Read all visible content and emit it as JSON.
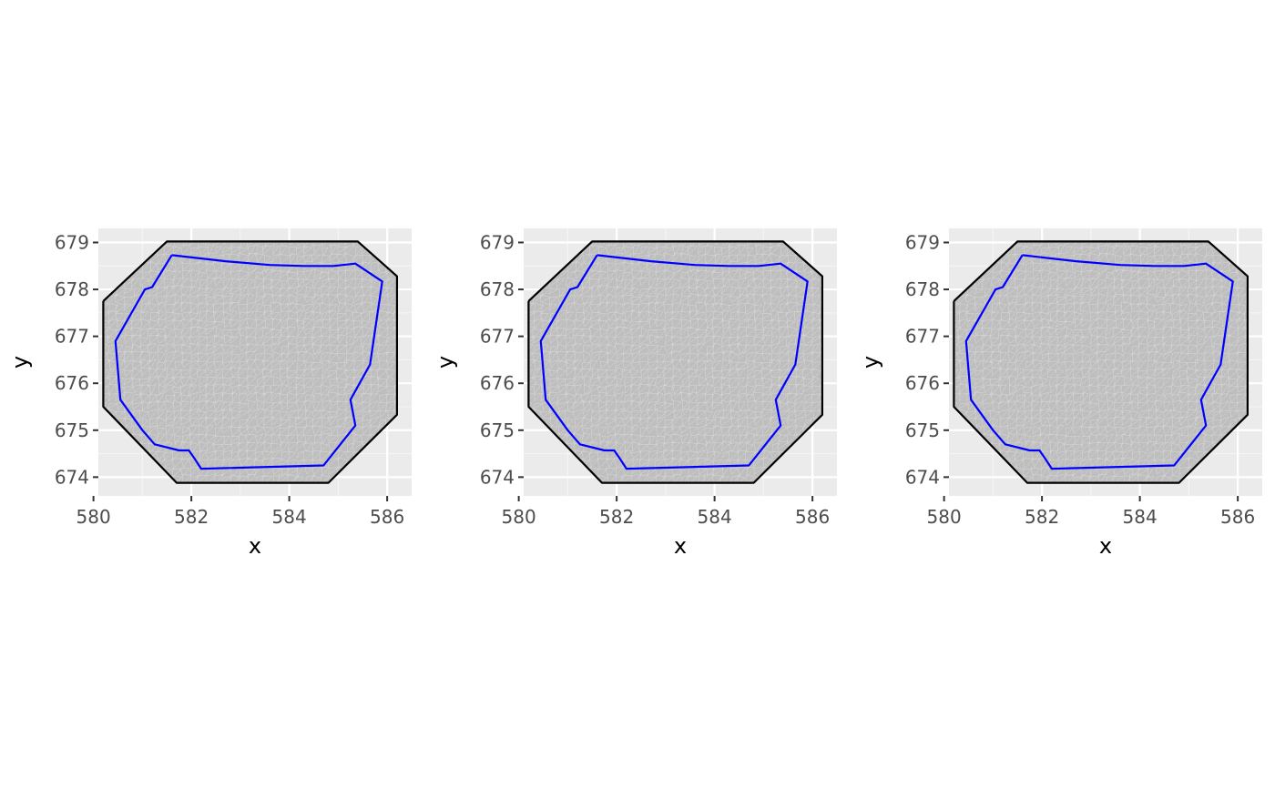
{
  "colors": {
    "panel_background": "#ebebeb",
    "grid_major": "#ffffff",
    "grid_minor": "#f5f5f5",
    "mesh_fill": "#bebebe",
    "mesh_line": "#d9d9d9",
    "outer_boundary": "#000000",
    "inner_boundary": "#0000ff",
    "tick_text": "#4d4d4d",
    "axis_title": "#000000"
  },
  "chart_data": [
    {
      "type": "polygon-mesh",
      "xlabel": "x",
      "ylabel": "y",
      "xlim": [
        580.1,
        586.5
      ],
      "ylim": [
        673.6,
        679.3
      ],
      "xticks": [
        580,
        582,
        584,
        586
      ],
      "yticks": [
        674,
        675,
        676,
        677,
        678,
        679
      ],
      "grid": true,
      "series": [
        {
          "kind": "mesh",
          "x": [
            580.2,
            580.2,
            581.5,
            585.4,
            586.2,
            586.2,
            584.8,
            581.7,
            580.2
          ],
          "y": [
            677.75,
            675.5,
            679.02,
            679.02,
            678.28,
            675.33,
            673.88,
            673.88,
            675.5
          ]
        },
        {
          "kind": "outer-boundary",
          "x": [
            580.2,
            581.5,
            585.4,
            586.2,
            586.2,
            584.8,
            581.7,
            580.2,
            580.2
          ],
          "y": [
            677.75,
            679.02,
            679.02,
            678.28,
            675.33,
            673.88,
            673.88,
            675.5,
            677.75
          ]
        },
        {
          "kind": "inner-boundary",
          "x": [
            581.6,
            582.7,
            583.6,
            584.3,
            584.9,
            585.35,
            585.9,
            585.65,
            585.25,
            585.35,
            584.7,
            582.2,
            582.05,
            581.95,
            581.75,
            581.25,
            581.0,
            580.55,
            580.45,
            581.05,
            581.2,
            581.6
          ],
          "y": [
            678.73,
            678.6,
            678.52,
            678.5,
            678.5,
            678.55,
            678.17,
            676.4,
            675.65,
            675.1,
            674.25,
            674.18,
            674.42,
            674.57,
            674.57,
            674.7,
            675.0,
            675.65,
            676.9,
            678.0,
            678.05,
            678.73
          ]
        }
      ]
    },
    {
      "type": "polygon-mesh",
      "xlabel": "x",
      "ylabel": "y",
      "xlim": [
        580.1,
        586.5
      ],
      "ylim": [
        673.6,
        679.3
      ],
      "xticks": [
        580,
        582,
        584,
        586
      ],
      "yticks": [
        674,
        675,
        676,
        677,
        678,
        679
      ],
      "grid": true,
      "series": [
        {
          "kind": "mesh",
          "x": [
            580.2,
            580.2,
            581.5,
            585.4,
            586.2,
            586.2,
            584.8,
            581.7,
            580.2
          ],
          "y": [
            677.75,
            675.5,
            679.02,
            679.02,
            678.28,
            675.33,
            673.88,
            673.88,
            675.5
          ]
        },
        {
          "kind": "outer-boundary",
          "x": [
            580.2,
            581.5,
            585.4,
            586.2,
            586.2,
            584.8,
            581.7,
            580.2,
            580.2
          ],
          "y": [
            677.75,
            679.02,
            679.02,
            678.28,
            675.33,
            673.88,
            673.88,
            675.5,
            677.75
          ]
        },
        {
          "kind": "inner-boundary",
          "x": [
            581.6,
            582.7,
            583.6,
            584.3,
            584.9,
            585.35,
            585.9,
            585.65,
            585.25,
            585.35,
            584.7,
            582.2,
            582.05,
            581.95,
            581.75,
            581.25,
            581.0,
            580.55,
            580.45,
            581.05,
            581.2,
            581.6
          ],
          "y": [
            678.73,
            678.6,
            678.52,
            678.5,
            678.5,
            678.55,
            678.17,
            676.4,
            675.65,
            675.1,
            674.25,
            674.18,
            674.42,
            674.57,
            674.57,
            674.7,
            675.0,
            675.65,
            676.9,
            678.0,
            678.05,
            678.73
          ]
        }
      ]
    },
    {
      "type": "polygon-mesh",
      "xlabel": "x",
      "ylabel": "y",
      "xlim": [
        580.1,
        586.5
      ],
      "ylim": [
        673.6,
        679.3
      ],
      "xticks": [
        580,
        582,
        584,
        586
      ],
      "yticks": [
        674,
        675,
        676,
        677,
        678,
        679
      ],
      "grid": true,
      "series": [
        {
          "kind": "mesh",
          "x": [
            580.2,
            580.2,
            581.5,
            585.4,
            586.2,
            586.2,
            584.8,
            581.7,
            580.2
          ],
          "y": [
            677.75,
            675.5,
            679.02,
            679.02,
            678.28,
            675.33,
            673.88,
            673.88,
            675.5
          ]
        },
        {
          "kind": "outer-boundary",
          "x": [
            580.2,
            581.5,
            585.4,
            586.2,
            586.2,
            584.8,
            581.7,
            580.2,
            580.2
          ],
          "y": [
            677.75,
            679.02,
            679.02,
            678.28,
            675.33,
            673.88,
            673.88,
            675.5,
            677.75
          ]
        },
        {
          "kind": "inner-boundary",
          "x": [
            581.6,
            582.7,
            583.6,
            584.3,
            584.9,
            585.35,
            585.9,
            585.65,
            585.25,
            585.35,
            584.7,
            582.2,
            582.05,
            581.95,
            581.75,
            581.25,
            581.0,
            580.55,
            580.45,
            581.05,
            581.2,
            581.6
          ],
          "y": [
            678.73,
            678.6,
            678.52,
            678.5,
            678.5,
            678.55,
            678.17,
            676.4,
            675.65,
            675.1,
            674.25,
            674.18,
            674.42,
            674.57,
            674.57,
            674.7,
            675.0,
            675.65,
            676.9,
            678.0,
            678.05,
            678.73
          ]
        }
      ]
    }
  ]
}
